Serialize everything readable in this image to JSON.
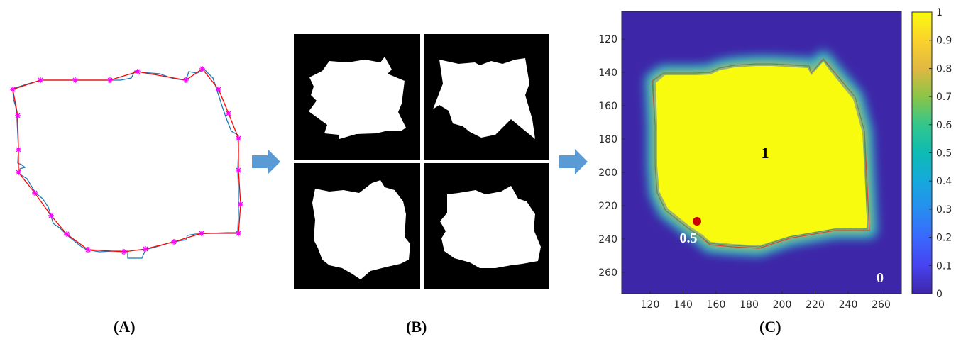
{
  "panels": {
    "a": {
      "label": "(A)"
    },
    "b": {
      "label": "(B)"
    },
    "c": {
      "label": "(C)",
      "center_value": "1",
      "boundary_value": "0.5",
      "background_value": "0",
      "x_ticks": [
        "120",
        "140",
        "160",
        "180",
        "200",
        "220",
        "240",
        "260"
      ],
      "y_ticks": [
        "120",
        "140",
        "160",
        "180",
        "200",
        "220",
        "240",
        "260"
      ],
      "colorbar_ticks": [
        "1",
        "0.9",
        "0.8",
        "0.7",
        "0.6",
        "0.5",
        "0.4",
        "0.3",
        "0.2",
        "0.1",
        "0"
      ]
    }
  },
  "colors": {
    "blue_contour": "#1f77b4",
    "red_polygon": "#ff0000",
    "markers": "#ff00ff",
    "arrow": "#5b9bd5",
    "heat_low": "#3e26a8",
    "heat_high": "#f9fb0e",
    "point": "#cc0000"
  }
}
